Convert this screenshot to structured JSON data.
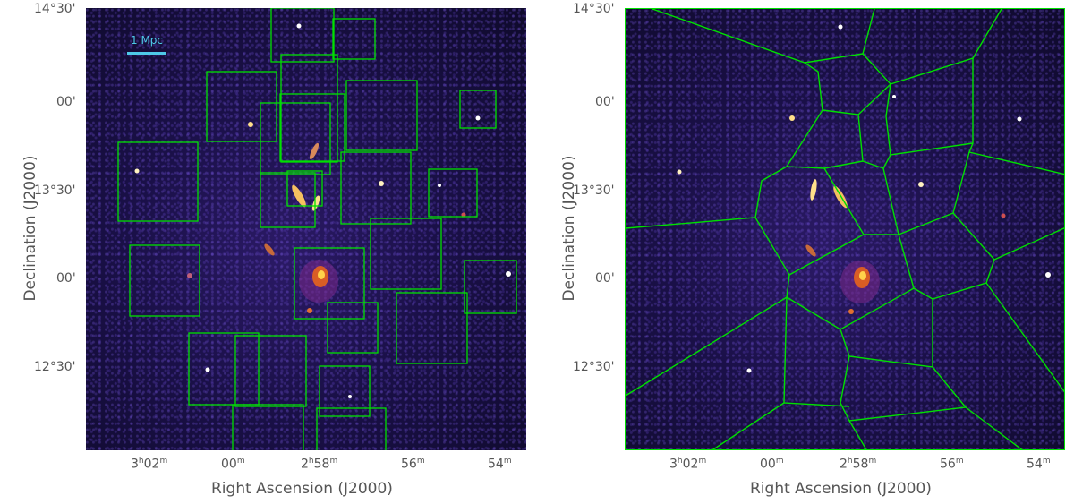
{
  "left_panel": {
    "scalebar_label": "1 Mpc"
  },
  "axes": {
    "ylabel": "Declination (J2000)",
    "xlabel": "Right Ascension (J2000)",
    "y_ticks": [
      "14°30'",
      "00'",
      "13°30'",
      "00'",
      "00'",
      "12°30'"
    ],
    "x_ticks": [
      {
        "main": "3",
        "h": "h",
        "mid": "02",
        "m": "m"
      },
      {
        "main": "00",
        "h": "",
        "mid": "",
        "m": "m"
      },
      {
        "main": "2",
        "h": "h",
        "mid": "58",
        "m": "m"
      },
      {
        "main": "56",
        "h": "",
        "mid": "",
        "m": "m"
      },
      {
        "main": "54",
        "h": "",
        "mid": "",
        "m": "m"
      }
    ]
  },
  "colors": {
    "overlay": "#00e000",
    "background_dark": "#0f0a2c",
    "scalebar": "#4ec9e8"
  }
}
